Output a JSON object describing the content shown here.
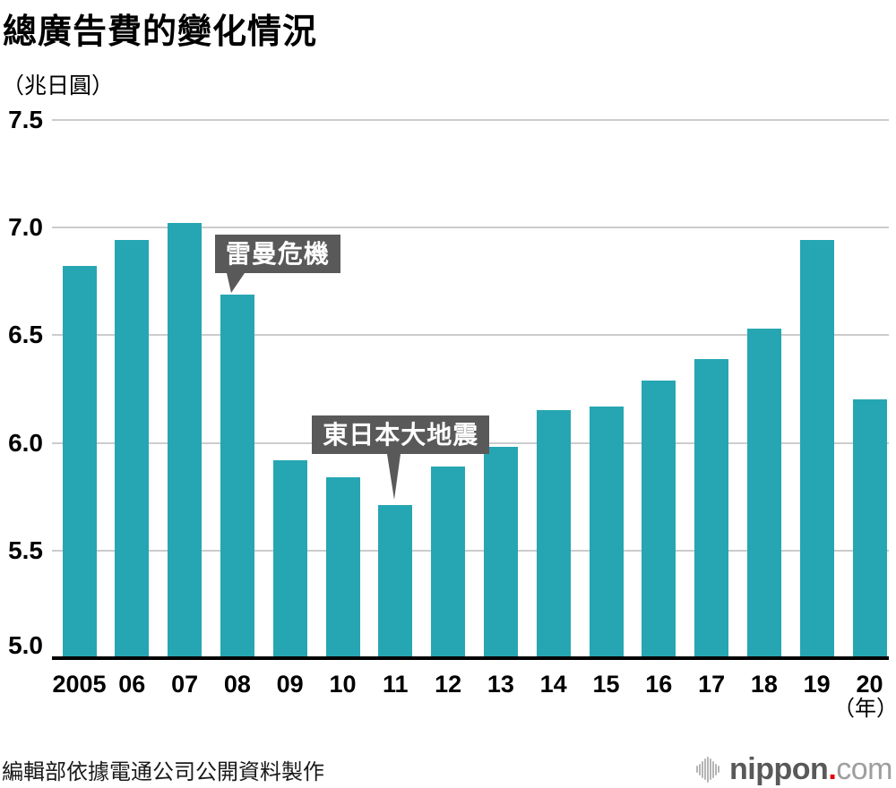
{
  "title": "總廣告費的變化情況",
  "unit_label": "（兆日圓）",
  "source": "編輯部依據電通公司公開資料製作",
  "logo": {
    "name": "nippon.com",
    "text_main": "nippon",
    "dot": ".",
    "text_suffix": "com"
  },
  "annotations": [
    {
      "label": "雷曼危機",
      "target_year": "08"
    },
    {
      "label": "東日本大地震",
      "target_year": "11"
    }
  ],
  "chart_data": {
    "type": "bar",
    "title": "總廣告費的變化情況",
    "ylabel": "（兆日圓）",
    "xlabel": "（年）",
    "categories": [
      "2005",
      "06",
      "07",
      "08",
      "09",
      "10",
      "11",
      "12",
      "13",
      "14",
      "15",
      "16",
      "17",
      "18",
      "19",
      "20"
    ],
    "values": [
      6.82,
      6.94,
      7.02,
      6.69,
      5.92,
      5.84,
      5.71,
      5.89,
      5.98,
      6.15,
      6.17,
      6.29,
      6.39,
      6.53,
      6.94,
      6.2
    ],
    "ylim": [
      5.0,
      7.5
    ],
    "yticks": [
      5.0,
      5.5,
      6.0,
      6.5,
      7.0,
      7.5
    ],
    "grid": true,
    "legend": false,
    "bar_color": "#26a6b2",
    "grid_color": "#cccccc",
    "annotation_bg": "#595959"
  },
  "x_axis_unit_suffix": "（年）"
}
